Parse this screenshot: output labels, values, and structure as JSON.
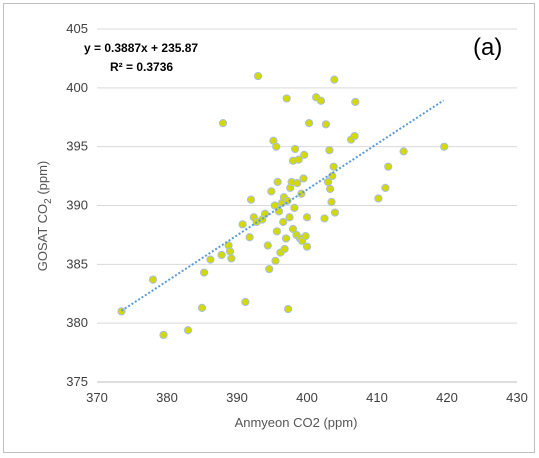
{
  "chart_data": {
    "type": "scatter",
    "title": "",
    "panel_label": "(a)",
    "xlabel": "Anmyeon CO2 (ppm)",
    "ylabel_main": "GOSAT CO",
    "ylabel_sub": "2",
    "ylabel_unit": " (ppm)",
    "xlim": [
      370,
      430
    ],
    "ylim": [
      375,
      405
    ],
    "x_ticks": [
      370,
      380,
      390,
      400,
      410,
      420,
      430
    ],
    "y_ticks": [
      375,
      380,
      385,
      390,
      395,
      400,
      405
    ],
    "grid": {
      "horizontal": true,
      "vertical": false
    },
    "marker_color": "#d4d900",
    "marker_edge_color": "#a8c0d8",
    "trendline_color": "#5b9bd5",
    "trendline": {
      "slope": 0.3887,
      "intercept": 235.87,
      "x_range": [
        373.5,
        419.5
      ],
      "equation_text": "y = 0.3887x + 235.87",
      "r2_text": "R² = 0.3736"
    },
    "points": [
      {
        "x": 373.5,
        "y": 381.0
      },
      {
        "x": 378.0,
        "y": 383.7
      },
      {
        "x": 379.5,
        "y": 379.0
      },
      {
        "x": 383.0,
        "y": 379.4
      },
      {
        "x": 385.0,
        "y": 381.3
      },
      {
        "x": 385.3,
        "y": 384.3
      },
      {
        "x": 386.2,
        "y": 385.4
      },
      {
        "x": 387.8,
        "y": 385.8
      },
      {
        "x": 388.0,
        "y": 397.0
      },
      {
        "x": 388.8,
        "y": 386.6
      },
      {
        "x": 389.0,
        "y": 386.1
      },
      {
        "x": 389.2,
        "y": 385.5
      },
      {
        "x": 390.8,
        "y": 388.4
      },
      {
        "x": 391.2,
        "y": 381.8
      },
      {
        "x": 391.8,
        "y": 387.3
      },
      {
        "x": 392.0,
        "y": 390.5
      },
      {
        "x": 392.4,
        "y": 389.0
      },
      {
        "x": 392.8,
        "y": 388.6
      },
      {
        "x": 393.0,
        "y": 401.0
      },
      {
        "x": 393.6,
        "y": 388.8
      },
      {
        "x": 394.0,
        "y": 389.3
      },
      {
        "x": 394.4,
        "y": 386.6
      },
      {
        "x": 394.6,
        "y": 384.6
      },
      {
        "x": 394.9,
        "y": 391.2
      },
      {
        "x": 395.2,
        "y": 395.5
      },
      {
        "x": 395.4,
        "y": 390.0
      },
      {
        "x": 395.5,
        "y": 385.3
      },
      {
        "x": 395.6,
        "y": 395.0
      },
      {
        "x": 395.7,
        "y": 387.8
      },
      {
        "x": 395.8,
        "y": 392.0
      },
      {
        "x": 396.0,
        "y": 389.5
      },
      {
        "x": 396.2,
        "y": 386.0
      },
      {
        "x": 396.4,
        "y": 390.2
      },
      {
        "x": 396.6,
        "y": 388.6
      },
      {
        "x": 396.7,
        "y": 390.7
      },
      {
        "x": 396.8,
        "y": 386.3
      },
      {
        "x": 397.0,
        "y": 387.2
      },
      {
        "x": 397.1,
        "y": 399.1
      },
      {
        "x": 397.2,
        "y": 390.4
      },
      {
        "x": 397.3,
        "y": 381.2
      },
      {
        "x": 397.5,
        "y": 389.0
      },
      {
        "x": 397.6,
        "y": 391.5
      },
      {
        "x": 397.8,
        "y": 392.0
      },
      {
        "x": 398.0,
        "y": 388.0
      },
      {
        "x": 398.0,
        "y": 393.8
      },
      {
        "x": 398.2,
        "y": 389.8
      },
      {
        "x": 398.3,
        "y": 394.8
      },
      {
        "x": 398.5,
        "y": 387.5
      },
      {
        "x": 398.6,
        "y": 391.9
      },
      {
        "x": 398.8,
        "y": 393.9
      },
      {
        "x": 399.0,
        "y": 387.2
      },
      {
        "x": 399.2,
        "y": 391.0
      },
      {
        "x": 399.3,
        "y": 387.0
      },
      {
        "x": 399.5,
        "y": 392.3
      },
      {
        "x": 399.6,
        "y": 394.3
      },
      {
        "x": 399.8,
        "y": 387.4
      },
      {
        "x": 400.0,
        "y": 386.5
      },
      {
        "x": 400.0,
        "y": 389.0
      },
      {
        "x": 400.3,
        "y": 397.0
      },
      {
        "x": 401.3,
        "y": 399.2
      },
      {
        "x": 402.0,
        "y": 398.9
      },
      {
        "x": 402.5,
        "y": 388.9
      },
      {
        "x": 402.7,
        "y": 396.9
      },
      {
        "x": 403.0,
        "y": 392.0
      },
      {
        "x": 403.2,
        "y": 394.7
      },
      {
        "x": 403.3,
        "y": 391.4
      },
      {
        "x": 403.5,
        "y": 390.3
      },
      {
        "x": 403.6,
        "y": 392.5
      },
      {
        "x": 403.8,
        "y": 393.3
      },
      {
        "x": 403.9,
        "y": 400.7
      },
      {
        "x": 404.0,
        "y": 389.4
      },
      {
        "x": 406.3,
        "y": 395.6
      },
      {
        "x": 406.8,
        "y": 395.9
      },
      {
        "x": 406.9,
        "y": 398.8
      },
      {
        "x": 410.2,
        "y": 390.6
      },
      {
        "x": 411.2,
        "y": 391.5
      },
      {
        "x": 411.6,
        "y": 393.3
      },
      {
        "x": 413.8,
        "y": 394.6
      },
      {
        "x": 419.6,
        "y": 395.0
      }
    ]
  }
}
